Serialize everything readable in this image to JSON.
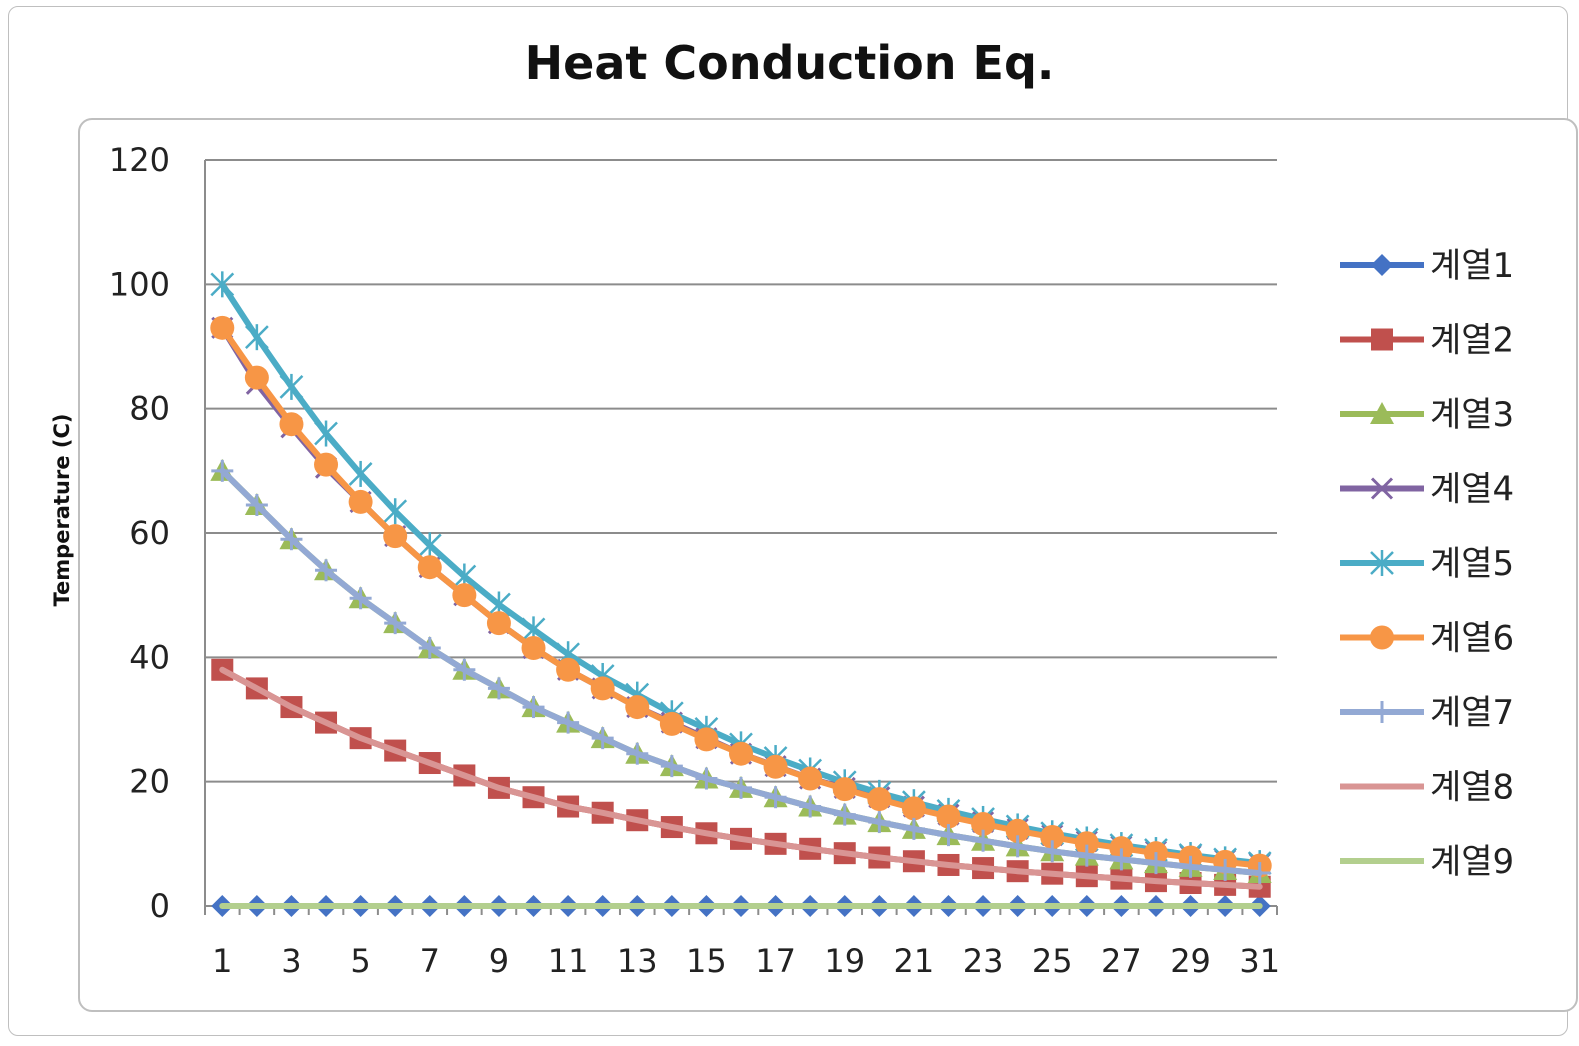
{
  "chart_data": {
    "type": "line",
    "title": "Heat Conduction Eq.",
    "xlabel": "",
    "ylabel": "Temperature (C)",
    "ylim": [
      0,
      120
    ],
    "yticks": [
      0,
      20,
      40,
      60,
      80,
      100,
      120
    ],
    "xticks": [
      1,
      3,
      5,
      7,
      9,
      11,
      13,
      15,
      17,
      19,
      21,
      23,
      25,
      27,
      29,
      31
    ],
    "x": [
      1,
      2,
      3,
      4,
      5,
      6,
      7,
      8,
      9,
      10,
      11,
      12,
      13,
      14,
      15,
      16,
      17,
      18,
      19,
      20,
      21,
      22,
      23,
      24,
      25,
      26,
      27,
      28,
      29,
      30,
      31
    ],
    "grid": true,
    "legend_position": "right",
    "series": [
      {
        "name": "계열1",
        "color": "#4472C4",
        "marker": "diamond",
        "values": [
          0,
          0,
          0,
          0,
          0,
          0,
          0,
          0,
          0,
          0,
          0,
          0,
          0,
          0,
          0,
          0,
          0,
          0,
          0,
          0,
          0,
          0,
          0,
          0,
          0,
          0,
          0,
          0,
          0,
          0,
          0
        ]
      },
      {
        "name": "계열2",
        "color": "#C0504D",
        "marker": "square",
        "values": [
          38.0,
          35.0,
          32.0,
          29.5,
          27.0,
          25.0,
          23.0,
          21.0,
          19.0,
          17.5,
          16.0,
          15.0,
          13.8,
          12.7,
          11.7,
          10.8,
          10.0,
          9.2,
          8.5,
          7.8,
          7.2,
          6.6,
          6.1,
          5.6,
          5.2,
          4.8,
          4.4,
          4.0,
          3.7,
          3.4,
          3.1
        ]
      },
      {
        "name": "계열3",
        "color": "#9BBB59",
        "marker": "triangle",
        "values": [
          70.0,
          64.5,
          59.0,
          54.0,
          49.5,
          45.5,
          41.5,
          38.0,
          35.0,
          32.0,
          29.5,
          27.0,
          24.5,
          22.5,
          20.5,
          19.0,
          17.5,
          16.0,
          14.7,
          13.5,
          12.4,
          11.4,
          10.5,
          9.6,
          8.8,
          8.1,
          7.5,
          6.9,
          6.3,
          5.8,
          5.3
        ]
      },
      {
        "name": "계열4",
        "color": "#8064A2",
        "marker": "x",
        "values": [
          93.0,
          84.0,
          77.0,
          70.5,
          65.0,
          59.5,
          54.5,
          50.0,
          45.5,
          41.5,
          38.0,
          35.0,
          32.0,
          29.5,
          27.0,
          24.5,
          22.5,
          20.5,
          19.0,
          17.5,
          16.0,
          14.7,
          13.5,
          12.4,
          11.4,
          10.4,
          9.6,
          8.8,
          8.1,
          7.4,
          6.8
        ]
      },
      {
        "name": "계열5",
        "color": "#4BACC6",
        "marker": "star",
        "values": [
          100.0,
          91.5,
          83.5,
          76.0,
          69.5,
          63.5,
          58.0,
          53.0,
          48.5,
          44.5,
          40.5,
          37.0,
          34.0,
          31.0,
          28.5,
          26.0,
          23.8,
          21.8,
          19.9,
          18.2,
          16.7,
          15.3,
          14.0,
          12.8,
          11.7,
          10.7,
          9.8,
          9.0,
          8.2,
          7.5,
          6.9
        ]
      },
      {
        "name": "계열6",
        "color": "#F79646",
        "marker": "circle",
        "values": [
          93.0,
          85.0,
          77.5,
          71.0,
          65.0,
          59.5,
          54.5,
          50.0,
          45.5,
          41.5,
          38.0,
          35.0,
          32.0,
          29.3,
          26.8,
          24.5,
          22.4,
          20.5,
          18.8,
          17.2,
          15.7,
          14.4,
          13.2,
          12.1,
          11.1,
          10.1,
          9.3,
          8.5,
          7.8,
          7.1,
          6.5
        ]
      },
      {
        "name": "계열7",
        "color": "#93A9D4",
        "marker": "plus",
        "values": [
          70.0,
          64.5,
          59.0,
          54.0,
          49.5,
          45.5,
          41.5,
          38.0,
          35.0,
          32.0,
          29.5,
          27.0,
          24.5,
          22.5,
          20.5,
          19.0,
          17.5,
          16.0,
          14.7,
          13.5,
          12.4,
          11.4,
          10.5,
          9.6,
          8.8,
          8.1,
          7.5,
          6.9,
          6.3,
          5.8,
          5.3
        ]
      },
      {
        "name": "계열8",
        "color": "#D99594",
        "marker": "none",
        "values": [
          38.0,
          35.0,
          32.0,
          29.5,
          27.0,
          25.0,
          23.0,
          21.0,
          19.0,
          17.5,
          16.0,
          15.0,
          13.8,
          12.7,
          11.7,
          10.8,
          10.0,
          9.2,
          8.5,
          7.8,
          7.2,
          6.6,
          6.1,
          5.6,
          5.2,
          4.8,
          4.4,
          4.0,
          3.7,
          3.4,
          3.1
        ]
      },
      {
        "name": "계열9",
        "color": "#B3CF8E",
        "marker": "none",
        "values": [
          0,
          0,
          0,
          0,
          0,
          0,
          0,
          0,
          0,
          0,
          0,
          0,
          0,
          0,
          0,
          0,
          0,
          0,
          0,
          0,
          0,
          0,
          0,
          0,
          0,
          0,
          0,
          0,
          0,
          0,
          0
        ]
      }
    ]
  }
}
